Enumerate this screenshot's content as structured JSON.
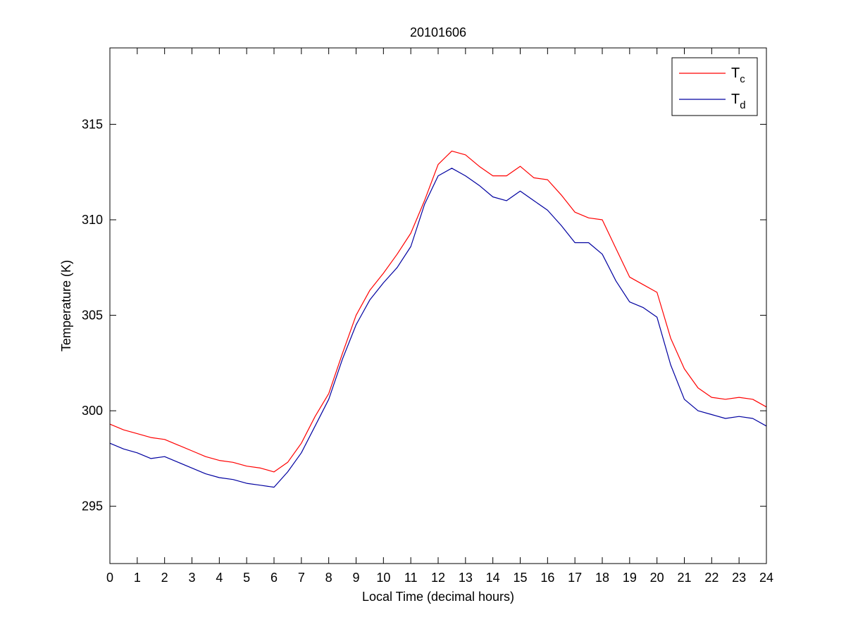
{
  "chart_data": {
    "type": "line",
    "title": "20101606",
    "xlabel": "Local Time (decimal hours)",
    "ylabel": "Temperature (K)",
    "xlim": [
      0,
      24
    ],
    "ylim": [
      292,
      319
    ],
    "x_ticks": [
      "0",
      "1",
      "2",
      "3",
      "4",
      "5",
      "6",
      "7",
      "8",
      "9",
      "10",
      "11",
      "12",
      "13",
      "14",
      "15",
      "16",
      "17",
      "18",
      "19",
      "20",
      "21",
      "22",
      "23",
      "24"
    ],
    "y_ticks": [
      "295",
      "300",
      "305",
      "310",
      "315"
    ],
    "grid": false,
    "legend_position": "top-right",
    "series": [
      {
        "name": "T_c",
        "legend_main": "T",
        "legend_sub": "c",
        "color": "#ff0000",
        "x": [
          0,
          0.5,
          1,
          1.5,
          2,
          2.5,
          3,
          3.5,
          4,
          4.5,
          5,
          5.5,
          6,
          6.5,
          7,
          7.5,
          8,
          8.5,
          9,
          9.5,
          10,
          10.5,
          11,
          11.5,
          12,
          12.5,
          13,
          13.5,
          14,
          14.5,
          15,
          15.5,
          16,
          16.5,
          17,
          17.5,
          18,
          18.5,
          19,
          19.5,
          20,
          20.5,
          21,
          21.5,
          22,
          22.5,
          23,
          23.5,
          24
        ],
        "y": [
          299.3,
          299.0,
          298.8,
          298.6,
          298.5,
          298.2,
          297.9,
          297.6,
          297.4,
          297.3,
          297.1,
          297.0,
          296.8,
          297.3,
          298.3,
          299.7,
          300.9,
          303.0,
          305.0,
          306.3,
          307.2,
          308.2,
          309.3,
          311.0,
          312.9,
          313.6,
          313.4,
          312.8,
          312.3,
          312.3,
          312.8,
          312.2,
          312.1,
          311.3,
          310.4,
          310.1,
          310.0,
          308.5,
          307.0,
          306.6,
          306.2,
          303.8,
          302.2,
          301.2,
          300.7,
          300.6,
          300.7,
          300.6,
          300.2
        ]
      },
      {
        "name": "T_d",
        "legend_main": "T",
        "legend_sub": "d",
        "color": "#0000a0",
        "x": [
          0,
          0.5,
          1,
          1.5,
          2,
          2.5,
          3,
          3.5,
          4,
          4.5,
          5,
          5.5,
          6,
          6.5,
          7,
          7.5,
          8,
          8.5,
          9,
          9.5,
          10,
          10.5,
          11,
          11.5,
          12,
          12.5,
          13,
          13.5,
          14,
          14.5,
          15,
          15.5,
          16,
          16.5,
          17,
          17.5,
          18,
          18.5,
          19,
          19.5,
          20,
          20.5,
          21,
          21.5,
          22,
          22.5,
          23,
          23.5,
          24
        ],
        "y": [
          298.3,
          298.0,
          297.8,
          297.5,
          297.6,
          297.3,
          297.0,
          296.7,
          296.5,
          296.4,
          296.2,
          296.1,
          296.0,
          296.8,
          297.8,
          299.2,
          300.6,
          302.7,
          304.5,
          305.8,
          306.7,
          307.5,
          308.6,
          310.8,
          312.3,
          312.7,
          312.3,
          311.8,
          311.2,
          311.0,
          311.5,
          311.0,
          310.5,
          309.7,
          308.8,
          308.8,
          308.2,
          306.8,
          305.7,
          305.4,
          304.9,
          302.4,
          300.6,
          300.0,
          299.8,
          299.6,
          299.7,
          299.6,
          299.2
        ]
      }
    ]
  }
}
